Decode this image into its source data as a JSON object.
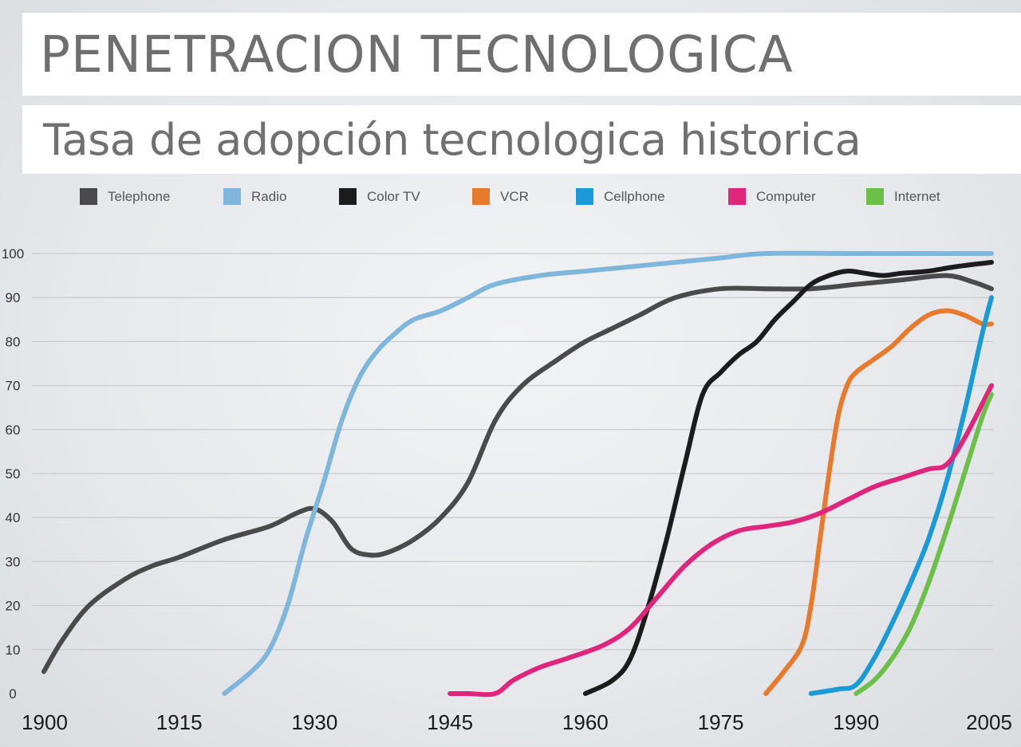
{
  "header": {
    "title": "PENETRACION TECNOLOGICA",
    "subtitle": "Tasa de adopción tecnologica historica"
  },
  "chart_data": {
    "type": "line",
    "title": "PENETRACION TECNOLOGICA",
    "subtitle": "Tasa de adopción tecnologica historica",
    "xlabel": "",
    "ylabel": "",
    "xlim": [
      1900,
      2005
    ],
    "ylim": [
      0,
      100
    ],
    "x_ticks": [
      1900,
      1915,
      1930,
      1945,
      1960,
      1975,
      1990,
      2005
    ],
    "y_ticks": [
      0,
      10,
      20,
      30,
      40,
      50,
      60,
      70,
      80,
      90,
      100
    ],
    "grid": "horizontal",
    "legend_position": "top",
    "series": [
      {
        "name": "Telephone",
        "color": "#4a4a4a",
        "points": [
          [
            1900,
            5
          ],
          [
            1902,
            12
          ],
          [
            1905,
            20
          ],
          [
            1909,
            26
          ],
          [
            1912,
            29
          ],
          [
            1915,
            31
          ],
          [
            1920,
            35
          ],
          [
            1925,
            38
          ],
          [
            1928,
            41
          ],
          [
            1930,
            42
          ],
          [
            1932,
            39
          ],
          [
            1934,
            33
          ],
          [
            1936,
            31.5
          ],
          [
            1938,
            32
          ],
          [
            1941,
            35
          ],
          [
            1944,
            40
          ],
          [
            1947,
            48
          ],
          [
            1950,
            62
          ],
          [
            1953,
            70
          ],
          [
            1957,
            76
          ],
          [
            1960,
            80
          ],
          [
            1963,
            83
          ],
          [
            1966,
            86
          ],
          [
            1970,
            90
          ],
          [
            1975,
            92
          ],
          [
            1980,
            92
          ],
          [
            1985,
            92
          ],
          [
            1990,
            93
          ],
          [
            1995,
            94
          ],
          [
            2000,
            95
          ],
          [
            2003,
            93.5
          ],
          [
            2005,
            92
          ]
        ]
      },
      {
        "name": "Radio",
        "color": "#7fb6dc",
        "points": [
          [
            1920,
            0
          ],
          [
            1923,
            5
          ],
          [
            1925,
            10
          ],
          [
            1927,
            20
          ],
          [
            1929,
            35
          ],
          [
            1931,
            48
          ],
          [
            1933,
            62
          ],
          [
            1935,
            72
          ],
          [
            1937,
            78
          ],
          [
            1939,
            82
          ],
          [
            1941,
            85
          ],
          [
            1944,
            87
          ],
          [
            1947,
            90
          ],
          [
            1950,
            93
          ],
          [
            1955,
            95
          ],
          [
            1960,
            96
          ],
          [
            1965,
            97
          ],
          [
            1970,
            98
          ],
          [
            1975,
            99
          ],
          [
            1980,
            100
          ],
          [
            1990,
            100
          ],
          [
            2005,
            100
          ]
        ]
      },
      {
        "name": "Color TV",
        "color": "#1c1c1c",
        "points": [
          [
            1960,
            0
          ],
          [
            1963,
            3
          ],
          [
            1965,
            8
          ],
          [
            1967,
            20
          ],
          [
            1969,
            35
          ],
          [
            1971,
            52
          ],
          [
            1973,
            68
          ],
          [
            1975,
            73
          ],
          [
            1977,
            77
          ],
          [
            1979,
            80
          ],
          [
            1981,
            85
          ],
          [
            1983,
            89
          ],
          [
            1985,
            93
          ],
          [
            1987,
            95
          ],
          [
            1989,
            96
          ],
          [
            1991,
            95.5
          ],
          [
            1993,
            95
          ],
          [
            1995,
            95.5
          ],
          [
            1998,
            96
          ],
          [
            2001,
            97
          ],
          [
            2005,
            98
          ]
        ]
      },
      {
        "name": "VCR",
        "color": "#e87a2d",
        "points": [
          [
            1980,
            0
          ],
          [
            1982,
            5
          ],
          [
            1984,
            11
          ],
          [
            1985,
            20
          ],
          [
            1986,
            35
          ],
          [
            1987,
            50
          ],
          [
            1988,
            63
          ],
          [
            1989,
            70
          ],
          [
            1990,
            73
          ],
          [
            1992,
            76
          ],
          [
            1994,
            79
          ],
          [
            1996,
            83
          ],
          [
            1998,
            86
          ],
          [
            2000,
            87
          ],
          [
            2002,
            86
          ],
          [
            2004,
            84
          ],
          [
            2005,
            84
          ]
        ]
      },
      {
        "name": "Cellphone",
        "color": "#1a9ad6",
        "points": [
          [
            1985,
            0
          ],
          [
            1988,
            1
          ],
          [
            1990,
            2
          ],
          [
            1992,
            8
          ],
          [
            1994,
            16
          ],
          [
            1996,
            25
          ],
          [
            1998,
            35
          ],
          [
            2000,
            48
          ],
          [
            2002,
            64
          ],
          [
            2004,
            82
          ],
          [
            2005,
            90
          ]
        ]
      },
      {
        "name": "Computer",
        "color": "#e0267c",
        "points": [
          [
            1945,
            0
          ],
          [
            1947,
            0
          ],
          [
            1950,
            0
          ],
          [
            1952,
            3
          ],
          [
            1955,
            6
          ],
          [
            1958,
            8
          ],
          [
            1962,
            11
          ],
          [
            1965,
            15
          ],
          [
            1968,
            22
          ],
          [
            1971,
            29
          ],
          [
            1974,
            34
          ],
          [
            1977,
            37
          ],
          [
            1980,
            38
          ],
          [
            1983,
            39
          ],
          [
            1986,
            41
          ],
          [
            1989,
            44
          ],
          [
            1992,
            47
          ],
          [
            1995,
            49
          ],
          [
            1998,
            51
          ],
          [
            2000,
            52
          ],
          [
            2002,
            58
          ],
          [
            2005,
            70
          ]
        ]
      },
      {
        "name": "Internet",
        "color": "#6cc04a",
        "points": [
          [
            1990,
            0
          ],
          [
            1992,
            3
          ],
          [
            1994,
            8
          ],
          [
            1996,
            15
          ],
          [
            1998,
            25
          ],
          [
            2000,
            37
          ],
          [
            2002,
            50
          ],
          [
            2004,
            63
          ],
          [
            2005,
            68
          ]
        ]
      }
    ]
  }
}
